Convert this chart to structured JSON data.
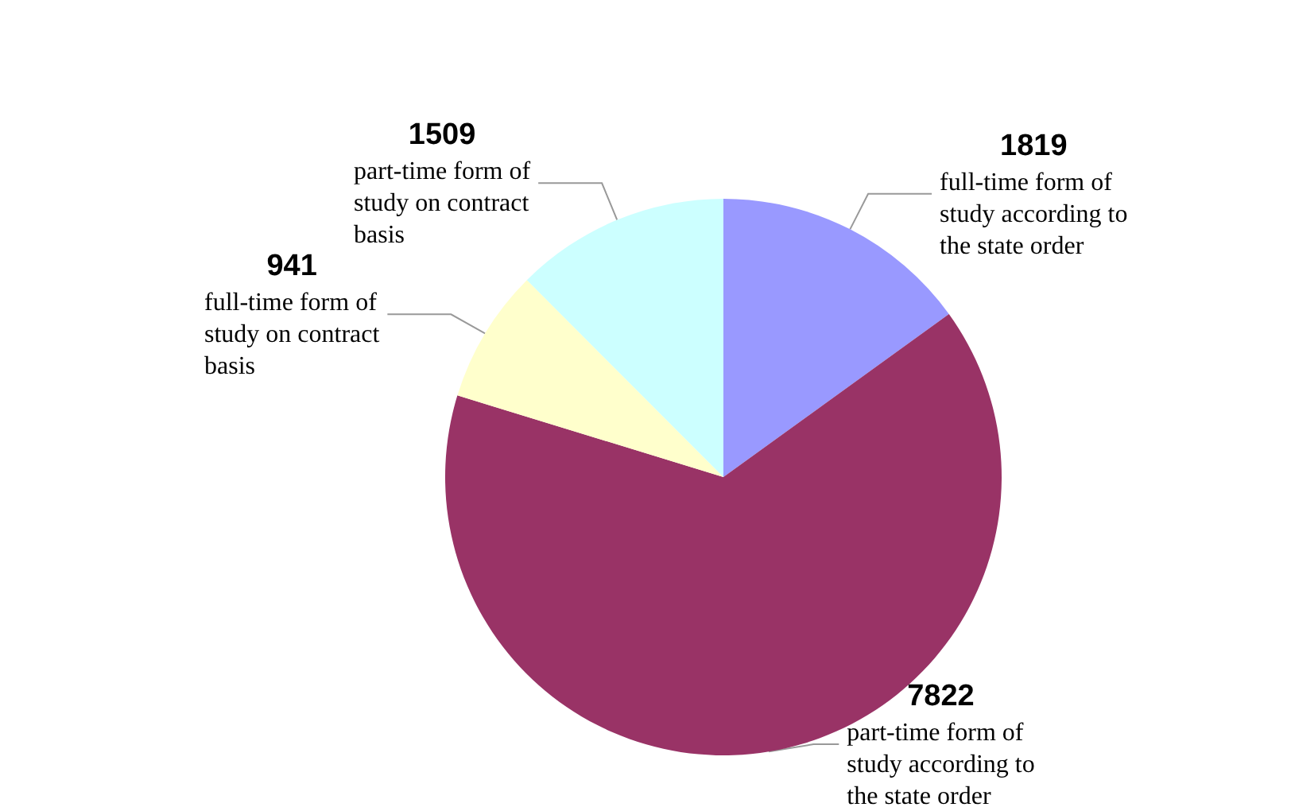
{
  "chart_data": {
    "type": "pie",
    "categories": [
      "full-time form of study according to the state order",
      "part-time form of study according to the state order",
      "full-time form of study on contract basis",
      "part-time form of study on contract basis"
    ],
    "values": [
      1819,
      7822,
      941,
      1509
    ],
    "colors": [
      "#9999ff",
      "#993366",
      "#ffffcc",
      "#ccffff"
    ],
    "data_labels": true,
    "legend": false
  }
}
